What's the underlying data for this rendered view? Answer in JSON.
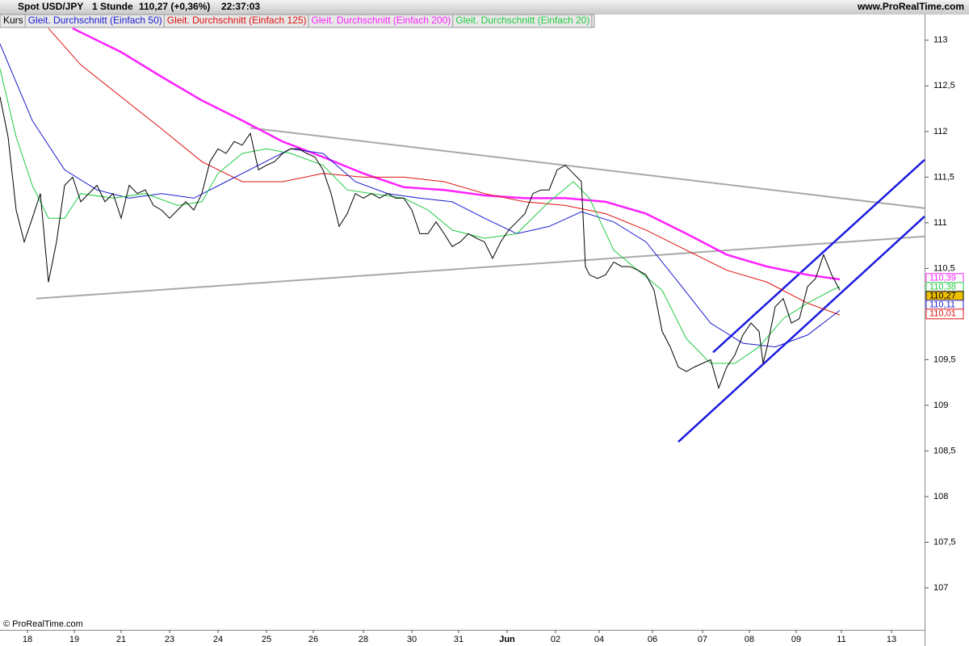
{
  "header": {
    "instrument": "Spot USD/JPY",
    "period": "1 Stunde",
    "quote": "110,27 (+0,36%)",
    "time": "22:37:03",
    "site": "www.ProRealTime.com"
  },
  "footer": "© ProRealTime.com",
  "chart_data": {
    "type": "line",
    "xlim": [
      0,
      229
    ],
    "ylim": [
      106.54,
      113.14
    ],
    "xticks": [
      {
        "value": 6.8,
        "label": "18"
      },
      {
        "value": 18.4,
        "label": "19"
      },
      {
        "value": 30,
        "label": "21"
      },
      {
        "value": 42,
        "label": "23"
      },
      {
        "value": 54,
        "label": "24"
      },
      {
        "value": 66,
        "label": "25"
      },
      {
        "value": 77.6,
        "label": "26"
      },
      {
        "value": 90,
        "label": "28"
      },
      {
        "value": 102,
        "label": "30"
      },
      {
        "value": 113.6,
        "label": "31"
      },
      {
        "value": 125.6,
        "label": "Jun"
      },
      {
        "value": 137.6,
        "label": "02"
      },
      {
        "value": 148.4,
        "label": "04"
      },
      {
        "value": 161.6,
        "label": "06"
      },
      {
        "value": 174,
        "label": "07"
      },
      {
        "value": 185.6,
        "label": "08"
      },
      {
        "value": 197.2,
        "label": "09"
      },
      {
        "value": 208.4,
        "label": "11"
      },
      {
        "value": 220.8,
        "label": "13"
      }
    ],
    "yticks": [
      107,
      {
        "value": 107.5,
        "label": "107,5"
      },
      108,
      {
        "value": 108.5,
        "label": "108,5"
      },
      109,
      {
        "value": 109.5,
        "label": "109,5"
      },
      {
        "value": 110.5,
        "label": "110,5"
      },
      111,
      {
        "value": 111.5,
        "label": "111,5"
      },
      112,
      {
        "value": 112.5,
        "label": "112,5"
      },
      113
    ],
    "series": [
      {
        "name": "Kurs",
        "color": "#000000",
        "width": 1,
        "x": [
          0,
          2,
          4,
          6,
          8,
          10,
          12,
          14,
          16,
          18,
          20,
          22,
          24,
          26,
          28,
          30,
          32,
          34,
          36,
          38,
          40,
          42,
          44,
          46,
          48,
          50,
          52,
          54,
          56,
          58,
          60,
          62,
          64,
          66,
          68,
          70,
          72,
          74,
          76,
          78,
          80,
          82,
          84,
          86,
          88,
          90,
          92,
          94,
          96,
          98,
          100,
          102,
          104,
          106,
          108,
          110,
          112,
          114,
          116,
          118,
          120,
          122,
          124,
          126,
          128,
          130,
          132,
          134,
          136,
          138,
          140,
          142,
          144,
          145,
          146,
          148,
          150,
          152,
          154,
          156,
          158,
          160,
          162,
          164,
          166,
          168,
          170,
          172,
          174,
          176,
          178,
          180,
          182,
          184,
          186,
          188,
          189,
          190,
          192,
          194,
          196,
          198,
          200,
          202,
          204,
          206,
          208
        ],
        "values": [
          112.38,
          111.94,
          111.14,
          110.79,
          111.05,
          111.32,
          110.35,
          110.79,
          111.41,
          111.5,
          111.23,
          111.32,
          111.41,
          111.23,
          111.32,
          111.05,
          111.41,
          111.32,
          111.36,
          111.19,
          111.14,
          111.05,
          111.14,
          111.23,
          111.14,
          111.32,
          111.67,
          111.81,
          111.76,
          111.89,
          111.85,
          111.98,
          111.58,
          111.63,
          111.67,
          111.76,
          111.81,
          111.81,
          111.76,
          111.72,
          111.58,
          111.32,
          110.96,
          111.1,
          111.32,
          111.27,
          111.32,
          111.27,
          111.32,
          111.27,
          111.27,
          111.14,
          110.88,
          110.88,
          111.01,
          110.88,
          110.74,
          110.79,
          110.88,
          110.83,
          110.79,
          110.61,
          110.79,
          110.92,
          111.01,
          111.1,
          111.32,
          111.36,
          111.36,
          111.58,
          111.63,
          111.54,
          111.45,
          110.52,
          110.43,
          110.39,
          110.43,
          110.57,
          110.52,
          110.52,
          110.48,
          110.43,
          110.26,
          109.81,
          109.64,
          109.42,
          109.37,
          109.42,
          109.46,
          109.5,
          109.19,
          109.42,
          109.55,
          109.77,
          109.9,
          109.81,
          109.46,
          109.64,
          110.08,
          110.17,
          109.9,
          109.95,
          110.3,
          110.39,
          110.65,
          110.43,
          110.26
        ],
        "last": {
          "value": 110.27,
          "label": "110,27"
        }
      },
      {
        "name": "Gleit. Durchschnitt (Einfach 50)",
        "color": "#1a1ad0",
        "width": 1,
        "x": [
          0,
          8,
          16,
          24,
          32,
          40,
          48,
          56,
          64,
          72,
          80,
          88,
          96,
          104,
          112,
          120,
          128,
          136,
          144,
          152,
          160,
          168,
          176,
          184,
          192,
          200,
          208
        ],
        "values": [
          112.96,
          112.12,
          111.58,
          111.36,
          111.27,
          111.32,
          111.27,
          111.45,
          111.63,
          111.81,
          111.76,
          111.45,
          111.32,
          111.27,
          111.23,
          111.05,
          110.88,
          110.96,
          111.12,
          111.01,
          110.79,
          110.35,
          109.9,
          109.68,
          109.64,
          109.77,
          110.04
        ],
        "last": {
          "value": 110.11,
          "label": "110,11"
        }
      },
      {
        "name": "Gleit. Durchschnitt (Einfach 125)",
        "color": "#e01010",
        "width": 1,
        "x": [
          12,
          20,
          30,
          40,
          50,
          60,
          70,
          80,
          90,
          100,
          110,
          120,
          130,
          140,
          150,
          160,
          170,
          180,
          190,
          200,
          208
        ],
        "values": [
          113.13,
          112.73,
          112.38,
          112.03,
          111.67,
          111.45,
          111.45,
          111.54,
          111.5,
          111.5,
          111.45,
          111.32,
          111.23,
          111.19,
          111.1,
          110.92,
          110.7,
          110.48,
          110.35,
          110.12,
          109.99
        ],
        "last": {
          "value": 110.01,
          "label": "110,01"
        }
      },
      {
        "name": "Gleit. Durchschnitt (Einfach 200)",
        "color": "#ff22ff",
        "width": 2.5,
        "x": [
          18,
          30,
          40,
          50,
          60,
          70,
          80,
          90,
          100,
          110,
          120,
          130,
          140,
          150,
          160,
          170,
          180,
          190,
          200,
          208
        ],
        "values": [
          113.13,
          112.87,
          112.6,
          112.34,
          112.12,
          111.89,
          111.72,
          111.54,
          111.39,
          111.36,
          111.3,
          111.27,
          111.27,
          111.23,
          111.1,
          110.88,
          110.65,
          110.52,
          110.43,
          110.38
        ],
        "last": {
          "value": 110.39,
          "label": "110,39"
        }
      },
      {
        "name": "Gleit. Durchschnitt (Einfach 20)",
        "color": "#22cc44",
        "width": 1,
        "x": [
          0,
          4,
          8,
          12,
          16,
          20,
          28,
          36,
          44,
          50,
          54,
          60,
          66,
          72,
          80,
          86,
          92,
          100,
          106,
          112,
          120,
          128,
          136,
          142,
          146,
          152,
          158,
          164,
          170,
          176,
          182,
          188,
          194,
          200,
          206,
          208
        ],
        "values": [
          112.69,
          111.94,
          111.41,
          111.05,
          111.05,
          111.32,
          111.27,
          111.32,
          111.19,
          111.23,
          111.54,
          111.76,
          111.81,
          111.76,
          111.63,
          111.36,
          111.32,
          111.27,
          111.14,
          110.92,
          110.83,
          110.88,
          111.23,
          111.45,
          111.27,
          110.7,
          110.48,
          110.26,
          109.73,
          109.46,
          109.46,
          109.64,
          109.95,
          110.12,
          110.26,
          110.3
        ],
        "last": {
          "value": 110.38,
          "label": "110,38"
        }
      }
    ],
    "trendlines": [
      {
        "color": "#a8a8a8",
        "x": [
          9,
          229
        ],
        "values": [
          110.17,
          110.85
        ]
      },
      {
        "color": "#a8a8a8",
        "x": [
          62,
          229
        ],
        "values": [
          112.04,
          111.16
        ]
      },
      {
        "color": "#1a1ae0",
        "x": [
          168,
          229
        ],
        "values": [
          108.6,
          111.07
        ]
      },
      {
        "color": "#1a1ae0",
        "x": [
          176.6,
          229
        ],
        "values": [
          109.58,
          111.69
        ]
      }
    ]
  }
}
